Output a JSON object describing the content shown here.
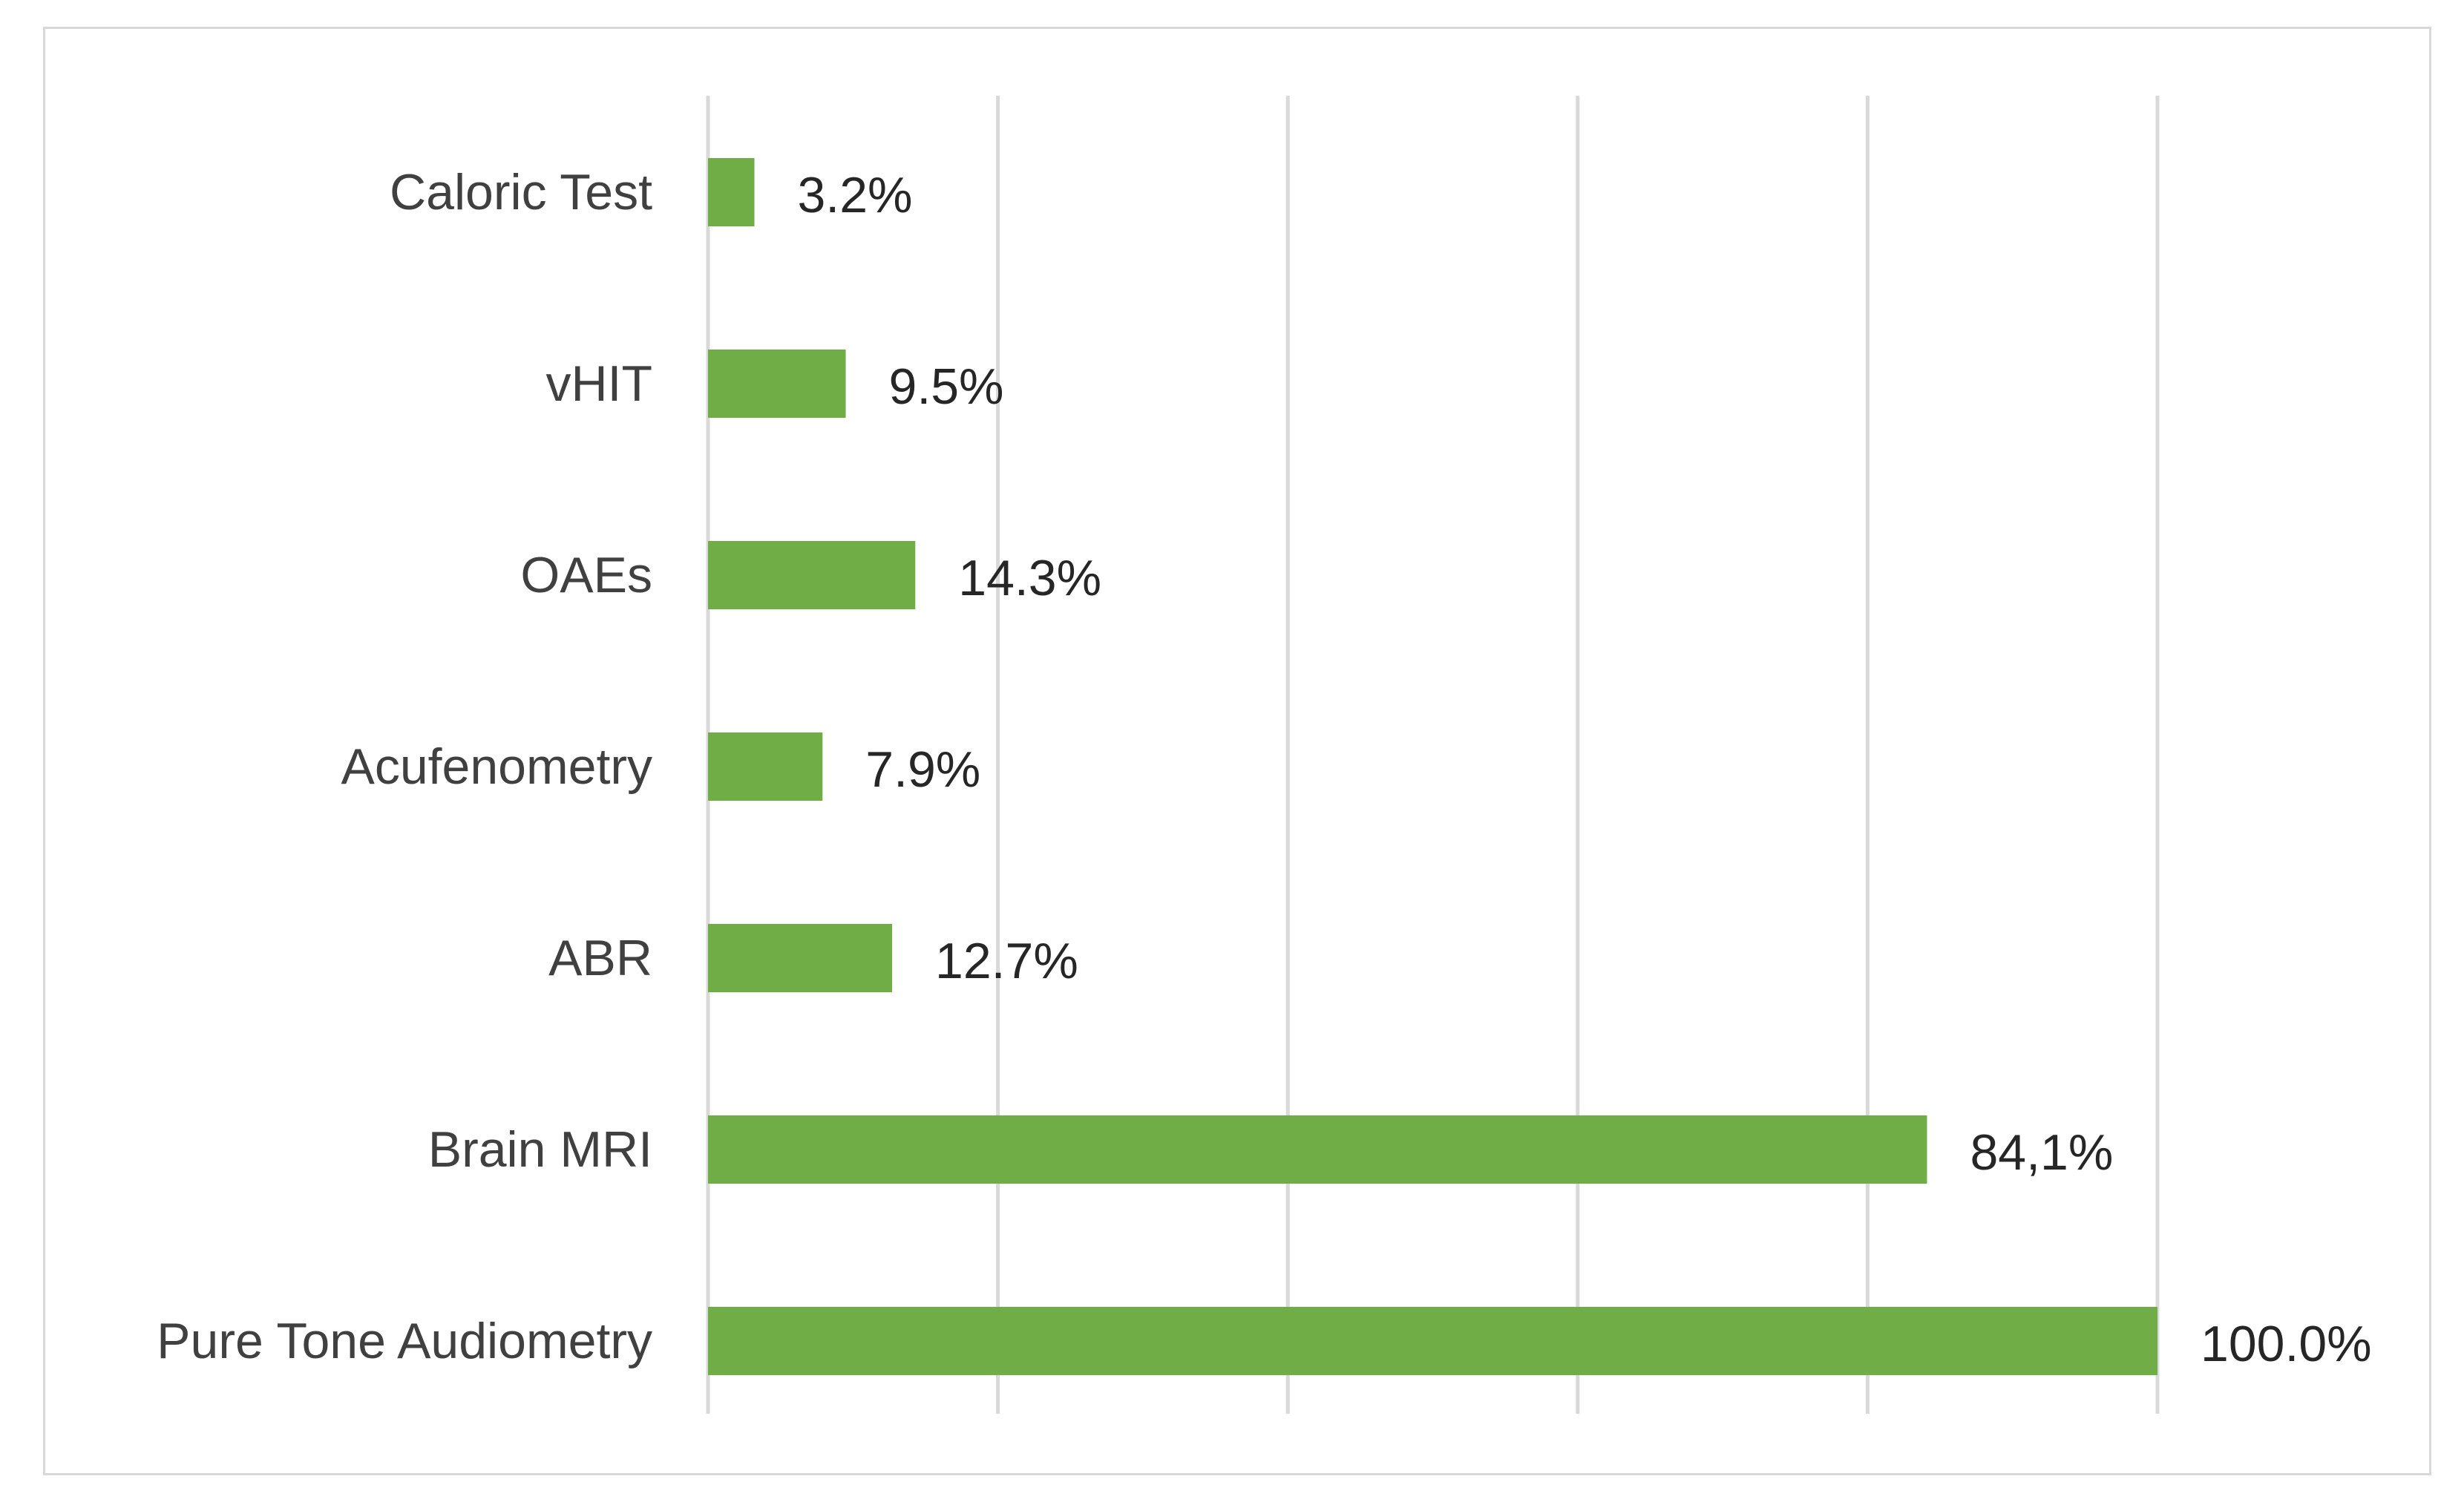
{
  "chart_data": {
    "type": "bar",
    "orientation": "horizontal",
    "categories": [
      "Caloric Test",
      "vHIT",
      "OAEs",
      "Acufenometry",
      "ABR",
      "Brain MRI",
      "Pure Tone Audiometry"
    ],
    "values": [
      3.2,
      9.5,
      14.3,
      7.9,
      12.7,
      84.1,
      100.0
    ],
    "data_labels": [
      "3.2%",
      "9.5%",
      "14.3%",
      "7.9%",
      "12.7%",
      "84,1%",
      "100.0%"
    ],
    "title": "",
    "xlabel": "",
    "ylabel": "",
    "xlim": [
      0,
      100
    ],
    "gridlines": [
      0,
      20,
      40,
      60,
      80,
      100
    ],
    "grid": true,
    "legend": "none",
    "bar_color": "#70ad47",
    "grid_color": "#d9d9d9"
  }
}
